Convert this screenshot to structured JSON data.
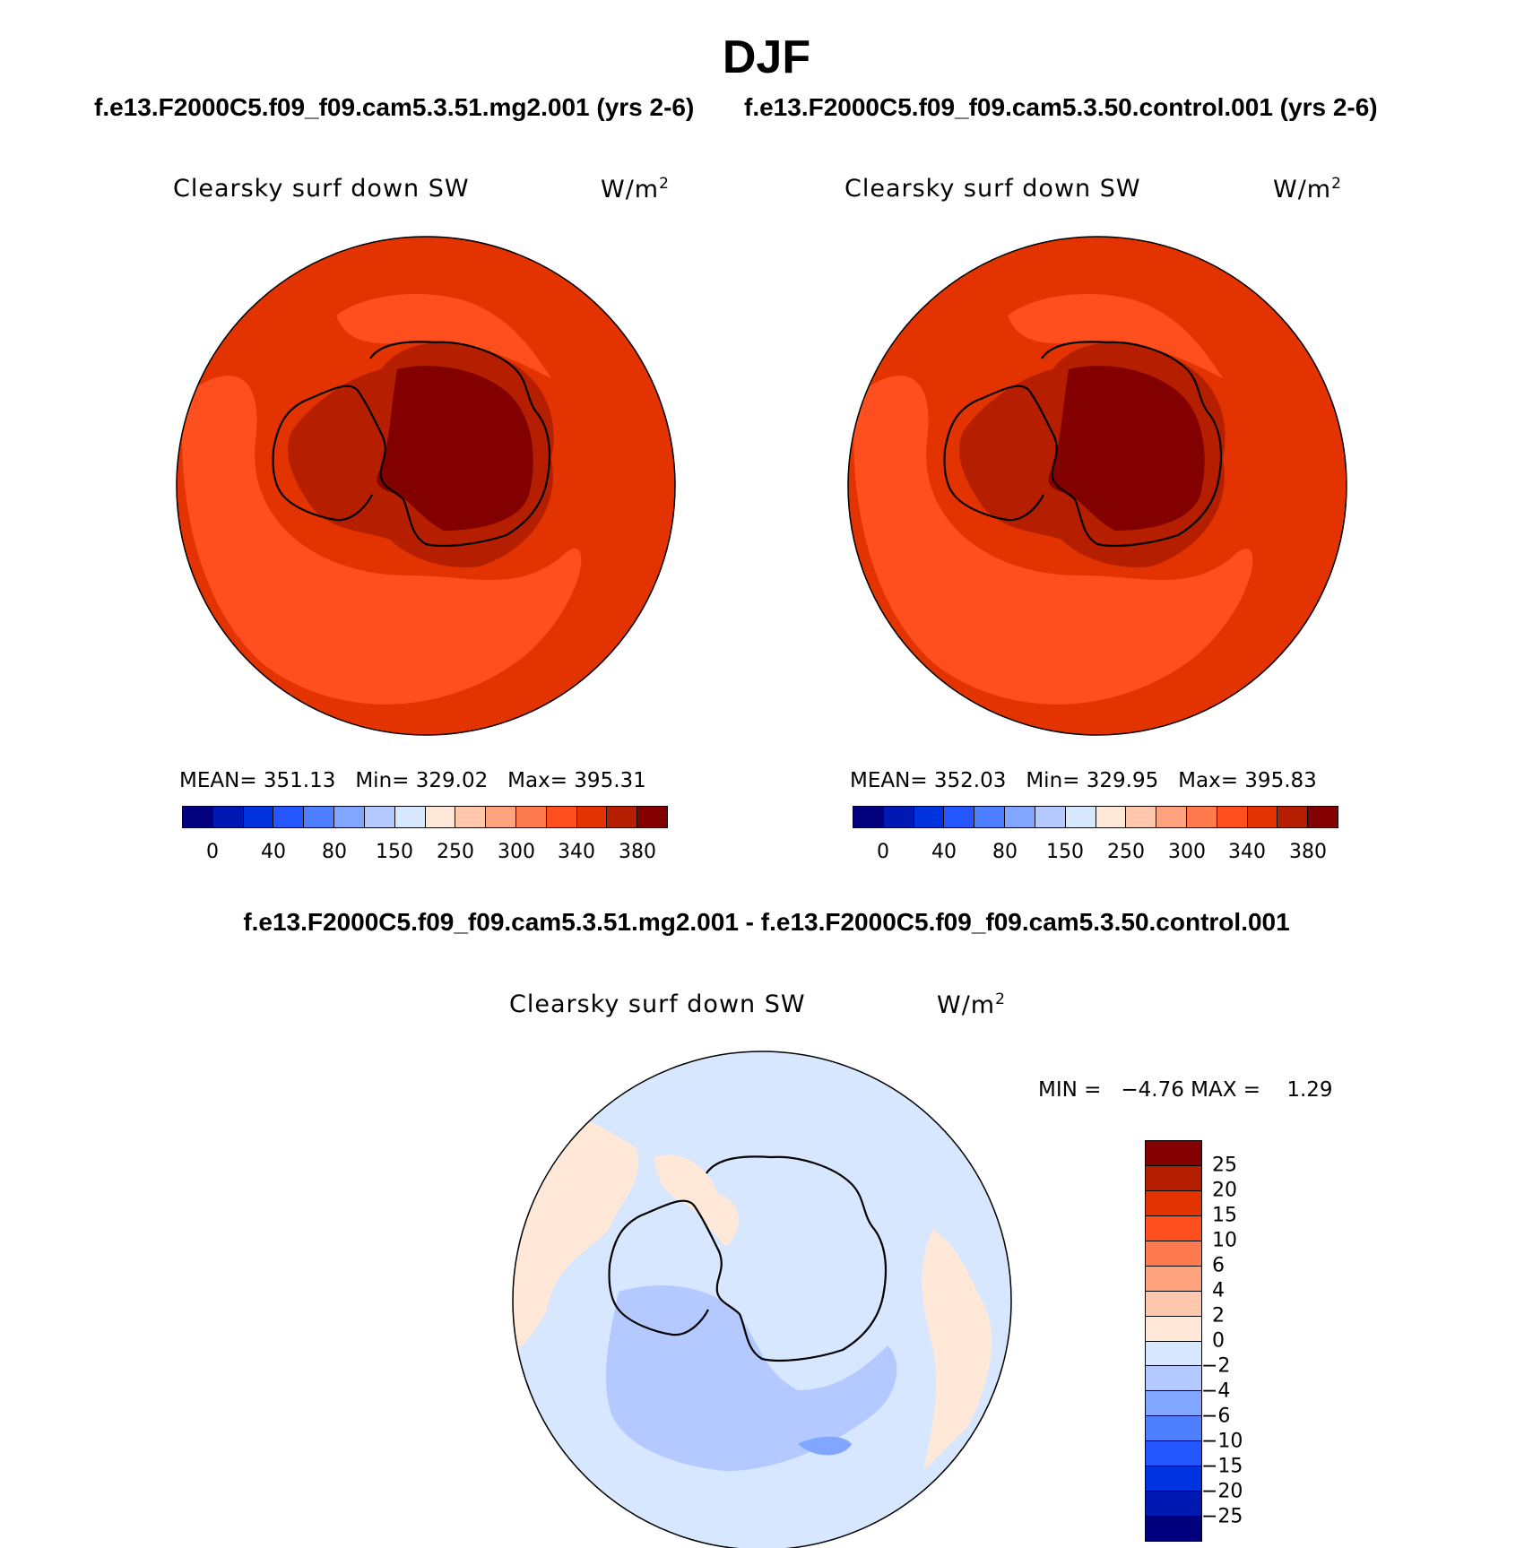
{
  "season": "DJF",
  "case_test_label": "f.e13.F2000C5.f09_f09.cam5.3.51.mg2.001 (yrs 2-6)",
  "case_ctrl_label": "f.e13.F2000C5.f09_f09.cam5.3.50.control.001 (yrs 2-6)",
  "diff_title": "f.e13.F2000C5.f09_f09.cam5.3.51.mg2.001 - f.e13.F2000C5.f09_f09.cam5.3.50.control.001",
  "variable": "Clearsky surf down SW",
  "units_base": "W/m",
  "units_exp": "2",
  "panel_test": {
    "mean_label": "MEAN=",
    "mean": "351.13",
    "min_label": "Min=",
    "min": "329.02",
    "max_label": "Max=",
    "max": "395.31"
  },
  "panel_ctrl": {
    "mean_label": "MEAN=",
    "mean": "352.03",
    "min_label": "Min=",
    "min": "329.95",
    "max_label": "Max=",
    "max": "395.83"
  },
  "panel_diff": {
    "min_label": "MIN =",
    "min": "−4.76",
    "max_label": "MAX =",
    "max": "1.29"
  },
  "abs_colorbar": {
    "colors": [
      "#00007f",
      "#0019b3",
      "#0033e0",
      "#2457ff",
      "#4d7fff",
      "#80a6ff",
      "#b3c9ff",
      "#d6e7ff",
      "#ffe8d8",
      "#ffc8ad",
      "#ffa37e",
      "#ff7a4f",
      "#ff4f1f",
      "#e33300",
      "#b51f00",
      "#820000"
    ],
    "tick_labels": [
      "0",
      "40",
      "80",
      "150",
      "250",
      "300",
      "340",
      "380"
    ]
  },
  "diff_colorbar": {
    "colors_top_to_bottom": [
      "#820000",
      "#b51f00",
      "#e33300",
      "#ff4f1f",
      "#ff7a4f",
      "#ffa37e",
      "#ffc8ad",
      "#ffe8d8",
      "#d6e7ff",
      "#b3c9ff",
      "#80a6ff",
      "#4d7fff",
      "#2457ff",
      "#0033e0",
      "#0019b3",
      "#00007f"
    ],
    "tick_labels": [
      "25",
      "20",
      "15",
      "10",
      "6",
      "4",
      "2",
      "0",
      "−2",
      "−4",
      "−6",
      "−10",
      "−15",
      "−20",
      "−25"
    ]
  },
  "field_colors": {
    "ocean": "#e33300",
    "lowlat_band": "#ff4f1f",
    "interior": "#b51f00",
    "plateau": "#820000",
    "diff_bg": "#d6e7ff",
    "diff_pos": "#ffe8d8",
    "diff_neg": "#b3c9ff",
    "diff_neg2": "#80a6ff"
  }
}
